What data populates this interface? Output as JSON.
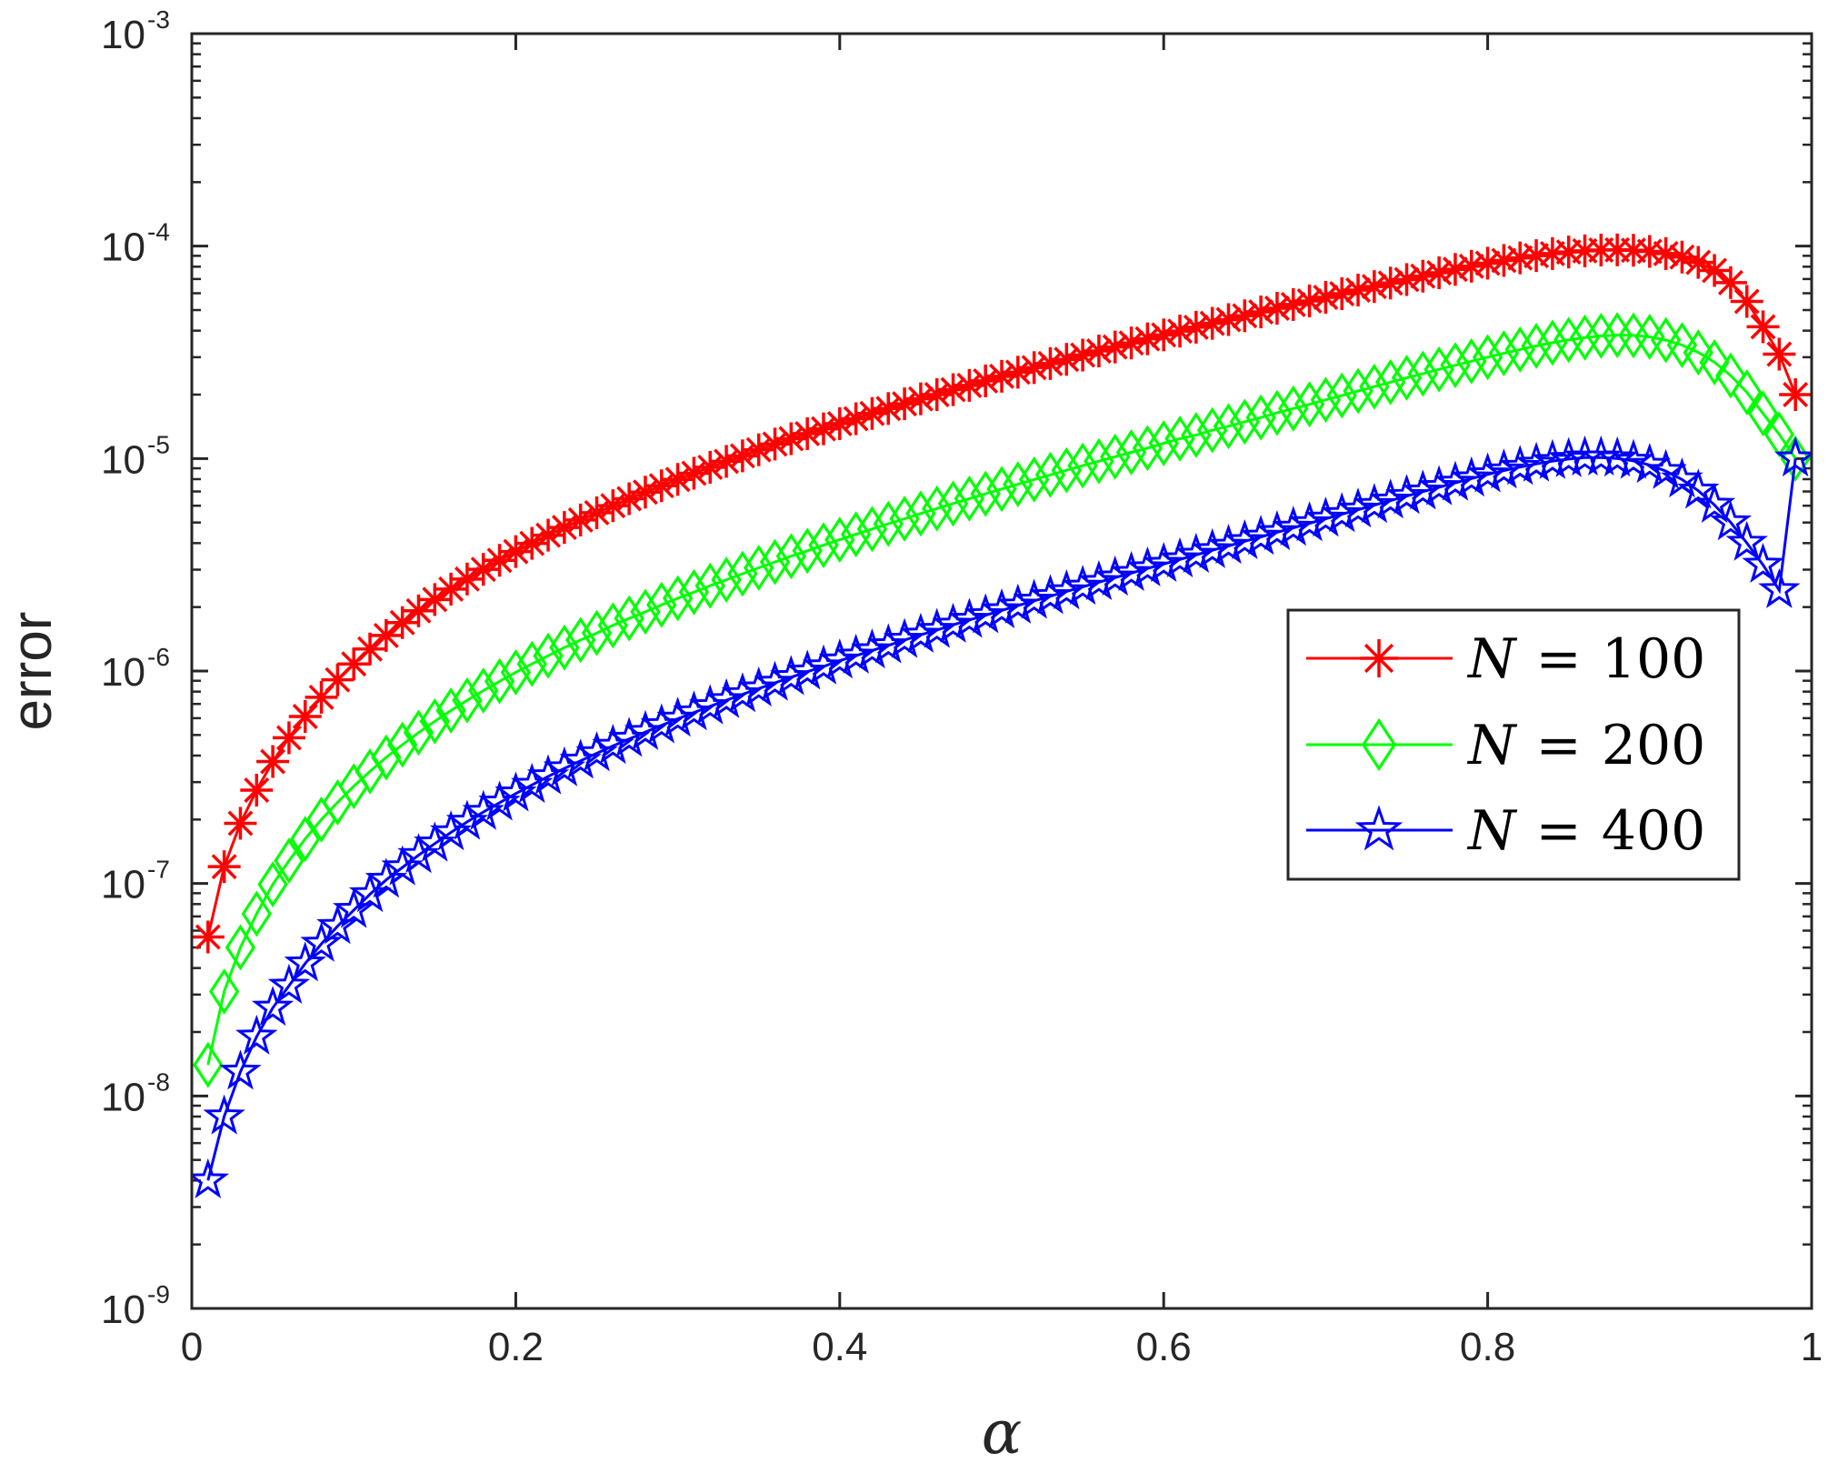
{
  "chart_data": {
    "type": "line",
    "title": "",
    "xlabel": "α",
    "ylabel": "error",
    "xlim": [
      0,
      1
    ],
    "ylim": [
      1e-09,
      0.001
    ],
    "yscale": "log",
    "grid": false,
    "legend_position": "right",
    "x_ticks": [
      {
        "value": 0,
        "label": "0"
      },
      {
        "value": 0.2,
        "label": "0.2"
      },
      {
        "value": 0.4,
        "label": "0.4"
      },
      {
        "value": 0.6,
        "label": "0.6"
      },
      {
        "value": 0.8,
        "label": "0.8"
      },
      {
        "value": 1,
        "label": "1"
      }
    ],
    "y_ticks": [
      {
        "exp": -9,
        "base": "10",
        "power": "-9"
      },
      {
        "exp": -8,
        "base": "10",
        "power": "-8"
      },
      {
        "exp": -7,
        "base": "10",
        "power": "-7"
      },
      {
        "exp": -6,
        "base": "10",
        "power": "-6"
      },
      {
        "exp": -5,
        "base": "10",
        "power": "-5"
      },
      {
        "exp": -4,
        "base": "10",
        "power": "-4"
      },
      {
        "exp": -3,
        "base": "10",
        "power": "-3"
      }
    ],
    "x": [
      0.01,
      0.02,
      0.03,
      0.04,
      0.05,
      0.06,
      0.07,
      0.08,
      0.09,
      0.1,
      0.11,
      0.12,
      0.13,
      0.14,
      0.15,
      0.16,
      0.17,
      0.18,
      0.19,
      0.2,
      0.21,
      0.22,
      0.23,
      0.24,
      0.25,
      0.26,
      0.27,
      0.28,
      0.29,
      0.3,
      0.31,
      0.32,
      0.33,
      0.34,
      0.35,
      0.36,
      0.37,
      0.38,
      0.39,
      0.4,
      0.41,
      0.42,
      0.43,
      0.44,
      0.45,
      0.46,
      0.47,
      0.48,
      0.49,
      0.5,
      0.51,
      0.52,
      0.53,
      0.54,
      0.55,
      0.56,
      0.57,
      0.58,
      0.59,
      0.6,
      0.61,
      0.62,
      0.63,
      0.64,
      0.65,
      0.66,
      0.67,
      0.68,
      0.69,
      0.7,
      0.71,
      0.72,
      0.73,
      0.74,
      0.75,
      0.76,
      0.77,
      0.78,
      0.79,
      0.8,
      0.81,
      0.82,
      0.83,
      0.84,
      0.85,
      0.86,
      0.87,
      0.88,
      0.89,
      0.9,
      0.91,
      0.92,
      0.93,
      0.94,
      0.95,
      0.96,
      0.97,
      0.98,
      0.99
    ],
    "series": [
      {
        "name": "N = 100",
        "legend_label": {
          "var": "N",
          "op": "=",
          "num": "100"
        },
        "color": "#ff0000",
        "marker": "asterisk",
        "values": [
          5.6e-08,
          1.2e-07,
          1.92e-07,
          2.75e-07,
          3.75e-07,
          4.85e-07,
          6.11e-07,
          7.52e-07,
          9.09e-07,
          1.08e-06,
          1.27e-06,
          1.47e-06,
          1.69e-06,
          1.92e-06,
          2.17e-06,
          2.43e-06,
          2.71e-06,
          3.01e-06,
          3.32e-06,
          3.65e-06,
          3.99e-06,
          4.36e-06,
          4.74e-06,
          5.14e-06,
          5.56e-06,
          6e-06,
          6.47e-06,
          6.95e-06,
          7.45e-06,
          7.98e-06,
          8.53e-06,
          9.1e-06,
          9.7e-06,
          1.03e-05,
          1.1e-05,
          1.17e-05,
          1.24e-05,
          1.31e-05,
          1.38e-05,
          1.46e-05,
          1.54e-05,
          1.63e-05,
          1.72e-05,
          1.81e-05,
          1.91e-05,
          2e-05,
          2.11e-05,
          2.21e-05,
          2.32e-05,
          2.44e-05,
          2.55e-05,
          2.68e-05,
          2.8e-05,
          2.93e-05,
          3.07e-05,
          3.21e-05,
          3.35e-05,
          3.5e-05,
          3.66e-05,
          3.82e-05,
          3.98e-05,
          4.15e-05,
          4.33e-05,
          4.51e-05,
          4.7e-05,
          4.9e-05,
          5.1e-05,
          5.31e-05,
          5.52e-05,
          5.74e-05,
          5.97e-05,
          6.21e-05,
          6.45e-05,
          6.7e-05,
          6.96e-05,
          7.22e-05,
          7.49e-05,
          7.77e-05,
          8.04e-05,
          8.31e-05,
          8.56e-05,
          8.8e-05,
          9.02e-05,
          9.22e-05,
          9.38e-05,
          9.5e-05,
          9.58e-05,
          9.6e-05,
          9.56e-05,
          9.44e-05,
          9.22e-05,
          8.88e-05,
          8.38e-05,
          7.68e-05,
          6.73e-05,
          5.49e-05,
          4.17e-05,
          3.1e-05,
          2e-05
        ]
      },
      {
        "name": "N = 200",
        "legend_label": {
          "var": "N",
          "op": "=",
          "num": "200"
        },
        "color": "#00ff00",
        "marker": "diamond",
        "values": [
          1.4e-08,
          3.1e-08,
          5e-08,
          7.2e-08,
          9.9e-08,
          1.28e-07,
          1.62e-07,
          2e-07,
          2.41e-07,
          2.87e-07,
          3.37e-07,
          3.92e-07,
          4.5e-07,
          5.13e-07,
          5.8e-07,
          6.52e-07,
          7.28e-07,
          8.09e-07,
          8.95e-07,
          9.86e-07,
          1.08e-06,
          1.18e-06,
          1.29e-06,
          1.4e-06,
          1.51e-06,
          1.64e-06,
          1.77e-06,
          1.9e-06,
          2.05e-06,
          2.2e-06,
          2.35e-06,
          2.52e-06,
          2.69e-06,
          2.87e-06,
          3.06e-06,
          3.26e-06,
          3.47e-06,
          3.68e-06,
          3.91e-06,
          4.15e-06,
          4.4e-06,
          4.66e-06,
          4.93e-06,
          5.21e-06,
          5.51e-06,
          5.82e-06,
          6.14e-06,
          6.48e-06,
          6.83e-06,
          7.19e-06,
          7.57e-06,
          7.97e-06,
          8.38e-06,
          8.81e-06,
          9.26e-06,
          9.72e-06,
          1.02e-05,
          1.07e-05,
          1.12e-05,
          1.18e-05,
          1.24e-05,
          1.29e-05,
          1.36e-05,
          1.42e-05,
          1.49e-05,
          1.56e-05,
          1.64e-05,
          1.72e-05,
          1.8e-05,
          1.89e-05,
          1.98e-05,
          2.08e-05,
          2.18e-05,
          2.29e-05,
          2.4e-05,
          2.51e-05,
          2.63e-05,
          2.75e-05,
          2.87e-05,
          3e-05,
          3.13e-05,
          3.26e-05,
          3.39e-05,
          3.51e-05,
          3.62e-05,
          3.71e-05,
          3.78e-05,
          3.81e-05,
          3.8e-05,
          3.74e-05,
          3.61e-05,
          3.42e-05,
          3.16e-05,
          2.84e-05,
          2.46e-05,
          2.05e-05,
          1.63e-05,
          1.3e-05,
          1e-05
        ]
      },
      {
        "name": "N = 400",
        "legend_label": {
          "var": "N",
          "op": "=",
          "num": "400"
        },
        "color": "#0000ff",
        "marker": "pentagram",
        "values": [
          4e-09,
          8e-09,
          1.3e-08,
          1.9e-08,
          2.6e-08,
          3.3e-08,
          4.2e-08,
          5.2e-08,
          6.3e-08,
          7.5e-08,
          8.9e-08,
          1.04e-07,
          1.19e-07,
          1.36e-07,
          1.54e-07,
          1.74e-07,
          1.95e-07,
          2.17e-07,
          2.4e-07,
          2.65e-07,
          2.91e-07,
          3.19e-07,
          3.48e-07,
          3.78e-07,
          4.1e-07,
          4.44e-07,
          4.79e-07,
          5.16e-07,
          5.55e-07,
          5.96e-07,
          6.38e-07,
          6.82e-07,
          7.29e-07,
          7.77e-07,
          8.27e-07,
          8.8e-07,
          9.35e-07,
          9.93e-07,
          1.05e-06,
          1.12e-06,
          1.18e-06,
          1.25e-06,
          1.32e-06,
          1.4e-06,
          1.48e-06,
          1.56e-06,
          1.65e-06,
          1.74e-06,
          1.83e-06,
          1.93e-06,
          2.03e-06,
          2.14e-06,
          2.25e-06,
          2.37e-06,
          2.49e-06,
          2.62e-06,
          2.75e-06,
          2.89e-06,
          3.04e-06,
          3.19e-06,
          3.35e-06,
          3.52e-06,
          3.7e-06,
          3.88e-06,
          4.08e-06,
          4.28e-06,
          4.5e-06,
          4.72e-06,
          4.96e-06,
          5.21e-06,
          5.47e-06,
          5.75e-06,
          6.04e-06,
          6.34e-06,
          6.66e-06,
          6.99e-06,
          7.33e-06,
          7.69e-06,
          8.05e-06,
          8.42e-06,
          8.78e-06,
          9.13e-06,
          9.45e-06,
          9.73e-06,
          9.94e-06,
          1.01e-05,
          1.01e-05,
          1e-05,
          9.75e-06,
          9.33e-06,
          8.73e-06,
          7.97e-06,
          7.06e-06,
          6.05e-06,
          5.01e-06,
          4.01e-06,
          3.16e-06,
          2.4e-06,
          1e-05
        ]
      }
    ]
  }
}
